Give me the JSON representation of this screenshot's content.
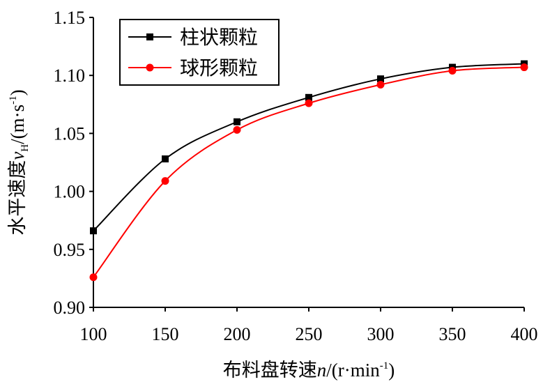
{
  "chart_data": {
    "type": "line",
    "title": "",
    "xlabel": "布料盘转速n/(r·min⁻¹)",
    "xlabel_parts": {
      "prefix": "布料盘转速",
      "var": "n",
      "suffix": "/(r·min",
      "sup": "-1",
      "close": ")"
    },
    "ylabel": "水平速度v_H/(m·s⁻¹)",
    "ylabel_parts": {
      "prefix": "水平速度",
      "var": "v",
      "sub": "H",
      "suffix": "/(m·s",
      "sup": "-1",
      "close": ")"
    },
    "x": [
      100,
      150,
      200,
      250,
      300,
      350,
      400
    ],
    "xlim": [
      100,
      400
    ],
    "ylim": [
      0.9,
      1.15
    ],
    "xticks": [
      "100",
      "150",
      "200",
      "250",
      "300",
      "350",
      "400"
    ],
    "yticks": [
      "0.90",
      "0.95",
      "1.00",
      "1.05",
      "1.10",
      "1.15"
    ],
    "grid": false,
    "legend_position": "top-left",
    "series": [
      {
        "name": "柱状颗粒",
        "color": "#000000",
        "marker": "square",
        "values": [
          0.966,
          1.028,
          1.06,
          1.081,
          1.097,
          1.107,
          1.11
        ]
      },
      {
        "name": "球形颗粒",
        "color": "#ff0000",
        "marker": "circle",
        "values": [
          0.926,
          1.009,
          1.053,
          1.076,
          1.092,
          1.104,
          1.107
        ]
      }
    ]
  }
}
